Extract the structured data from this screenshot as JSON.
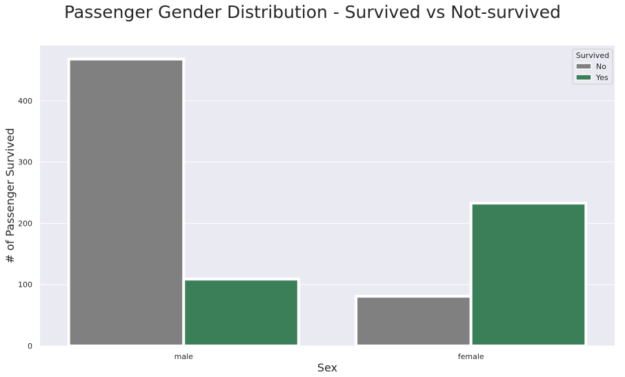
{
  "chart_data": {
    "type": "bar",
    "title": "Passenger Gender Distribution - Survived vs Not-survived",
    "xlabel": "Sex",
    "ylabel": "# of Passenger Survived",
    "categories": [
      "male",
      "female"
    ],
    "series": [
      {
        "name": "No",
        "values": [
          468,
          81
        ],
        "color": "#808080"
      },
      {
        "name": "Yes",
        "values": [
          109,
          233
        ],
        "color": "#3b7f58"
      }
    ],
    "ylim": [
      0,
      490
    ],
    "yticks": [
      0,
      100,
      200,
      300,
      400
    ],
    "legend": {
      "title": "Survived",
      "placement": "top-right"
    },
    "grid": true,
    "background_color": "#eaeaf2",
    "grid_color": "#ffffff"
  }
}
